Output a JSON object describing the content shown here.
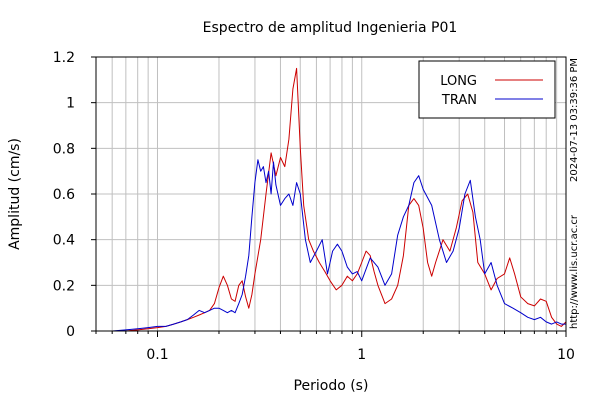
{
  "chart_data": {
    "type": "line",
    "title": "Espectro de amplitud Ingenieria P01",
    "xlabel": "Periodo (s)",
    "ylabel": "Amplitud (cm/s)",
    "x_scale": "log",
    "xlim": [
      0.05,
      10
    ],
    "ylim": [
      0,
      1.2
    ],
    "x_ticks": [
      "0.1",
      "1",
      "10"
    ],
    "y_ticks": [
      "0",
      "0.2",
      "0.4",
      "0.6",
      "0.8",
      "1",
      "1.2"
    ],
    "grid": true,
    "legend_position": "top-right",
    "series": [
      {
        "name": "LONG",
        "color": "#cc0000",
        "x": [
          0.06,
          0.07,
          0.08,
          0.09,
          0.1,
          0.11,
          0.12,
          0.13,
          0.14,
          0.15,
          0.16,
          0.17,
          0.18,
          0.19,
          0.2,
          0.21,
          0.22,
          0.23,
          0.24,
          0.25,
          0.26,
          0.27,
          0.28,
          0.29,
          0.3,
          0.32,
          0.34,
          0.36,
          0.38,
          0.4,
          0.42,
          0.44,
          0.46,
          0.48,
          0.5,
          0.52,
          0.55,
          0.58,
          0.62,
          0.66,
          0.7,
          0.75,
          0.8,
          0.85,
          0.9,
          0.95,
          1.0,
          1.05,
          1.1,
          1.15,
          1.2,
          1.3,
          1.4,
          1.5,
          1.6,
          1.7,
          1.8,
          1.9,
          2.0,
          2.1,
          2.2,
          2.3,
          2.5,
          2.7,
          2.9,
          3.1,
          3.3,
          3.5,
          3.7,
          4.0,
          4.3,
          4.6,
          5.0,
          5.3,
          5.6,
          6.0,
          6.5,
          7.0,
          7.5,
          8.0,
          8.5,
          9.0,
          9.5,
          10.0
        ],
        "y": [
          0.0,
          0.0,
          0.005,
          0.01,
          0.015,
          0.02,
          0.03,
          0.04,
          0.05,
          0.06,
          0.07,
          0.08,
          0.09,
          0.12,
          0.19,
          0.24,
          0.2,
          0.14,
          0.13,
          0.2,
          0.22,
          0.15,
          0.1,
          0.16,
          0.25,
          0.4,
          0.6,
          0.78,
          0.68,
          0.76,
          0.72,
          0.84,
          1.06,
          1.15,
          0.8,
          0.55,
          0.4,
          0.35,
          0.3,
          0.26,
          0.22,
          0.18,
          0.2,
          0.24,
          0.22,
          0.25,
          0.3,
          0.35,
          0.33,
          0.26,
          0.2,
          0.12,
          0.14,
          0.2,
          0.33,
          0.55,
          0.58,
          0.55,
          0.45,
          0.3,
          0.24,
          0.3,
          0.4,
          0.35,
          0.45,
          0.57,
          0.6,
          0.52,
          0.3,
          0.25,
          0.18,
          0.23,
          0.25,
          0.32,
          0.25,
          0.15,
          0.12,
          0.11,
          0.14,
          0.13,
          0.06,
          0.03,
          0.02,
          0.04
        ]
      },
      {
        "name": "TRAN",
        "color": "#0000cc",
        "x": [
          0.06,
          0.07,
          0.08,
          0.09,
          0.1,
          0.11,
          0.12,
          0.13,
          0.14,
          0.15,
          0.16,
          0.17,
          0.18,
          0.19,
          0.2,
          0.21,
          0.22,
          0.23,
          0.24,
          0.25,
          0.26,
          0.27,
          0.28,
          0.29,
          0.3,
          0.31,
          0.32,
          0.33,
          0.34,
          0.35,
          0.36,
          0.37,
          0.38,
          0.4,
          0.42,
          0.44,
          0.46,
          0.48,
          0.5,
          0.53,
          0.56,
          0.6,
          0.64,
          0.68,
          0.72,
          0.76,
          0.8,
          0.85,
          0.9,
          0.95,
          1.0,
          1.1,
          1.2,
          1.3,
          1.4,
          1.5,
          1.6,
          1.7,
          1.8,
          1.9,
          2.0,
          2.2,
          2.4,
          2.6,
          2.8,
          3.0,
          3.2,
          3.4,
          3.6,
          3.8,
          4.0,
          4.3,
          4.6,
          5.0,
          5.5,
          6.0,
          6.5,
          7.0,
          7.5,
          8.0,
          8.5,
          9.0,
          9.5,
          10.0
        ],
        "y": [
          0.0,
          0.005,
          0.01,
          0.015,
          0.02,
          0.02,
          0.03,
          0.04,
          0.05,
          0.07,
          0.09,
          0.08,
          0.09,
          0.1,
          0.1,
          0.09,
          0.08,
          0.09,
          0.08,
          0.12,
          0.16,
          0.24,
          0.33,
          0.5,
          0.65,
          0.75,
          0.7,
          0.72,
          0.65,
          0.7,
          0.6,
          0.74,
          0.64,
          0.55,
          0.58,
          0.6,
          0.55,
          0.65,
          0.6,
          0.4,
          0.3,
          0.35,
          0.4,
          0.25,
          0.35,
          0.38,
          0.35,
          0.28,
          0.25,
          0.26,
          0.22,
          0.32,
          0.28,
          0.2,
          0.25,
          0.42,
          0.5,
          0.55,
          0.65,
          0.68,
          0.62,
          0.55,
          0.4,
          0.3,
          0.35,
          0.45,
          0.6,
          0.66,
          0.5,
          0.4,
          0.25,
          0.3,
          0.2,
          0.12,
          0.1,
          0.08,
          0.06,
          0.05,
          0.06,
          0.04,
          0.03,
          0.04,
          0.03,
          0.03
        ]
      }
    ]
  },
  "side_label": "http://www.lis.ucr.ac.cr",
  "timestamp": "2024-07-13 03:39:36 PM"
}
